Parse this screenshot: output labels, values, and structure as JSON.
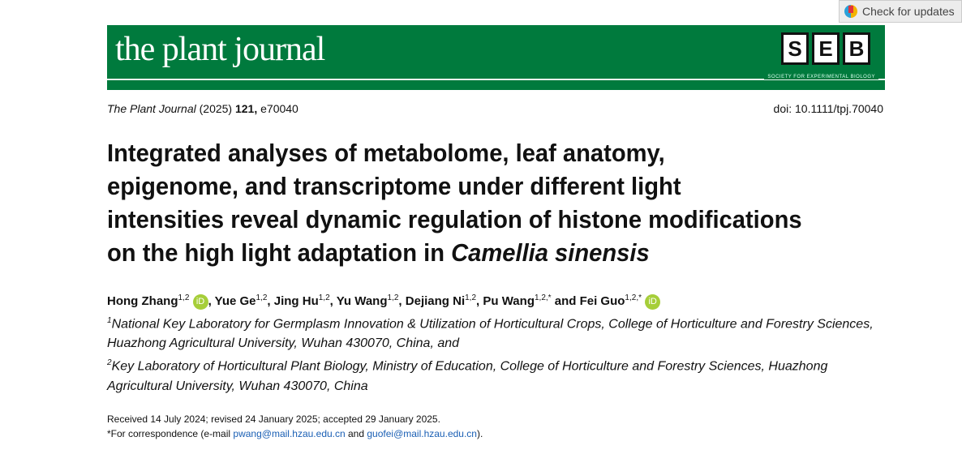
{
  "check_updates": {
    "label": "Check for updates"
  },
  "banner": {
    "journal_logo": "the plant journal",
    "seb_letters": [
      "S",
      "E",
      "B"
    ],
    "seb_subtitle": "SOCIETY FOR EXPERIMENTAL BIOLOGY",
    "color": "#007a3d"
  },
  "citation": {
    "journal": "The Plant Journal",
    "year": "(2025)",
    "volume": "121,",
    "article": "e70040"
  },
  "doi": "doi: 10.1111/tpj.70040",
  "title_lines": [
    "Integrated analyses of metabolome, leaf anatomy,",
    "epigenome, and transcriptome under different light",
    "intensities reveal dynamic regulation of histone modifications",
    "on the high light adaptation in "
  ],
  "title_species": "Camellia sinensis",
  "authors": [
    {
      "name": "Hong Zhang",
      "sup": "1,2",
      "orcid": "iD",
      "sep": ", "
    },
    {
      "name": "Yue Ge",
      "sup": "1,2",
      "sep": ", "
    },
    {
      "name": "Jing Hu",
      "sup": "1,2",
      "sep": ", "
    },
    {
      "name": "Yu Wang",
      "sup": "1,2",
      "sep": ", "
    },
    {
      "name": "Dejiang Ni",
      "sup": "1,2",
      "sep": ", "
    },
    {
      "name": "Pu Wang",
      "sup": "1,2,*",
      "sep": " and "
    },
    {
      "name": "Fei Guo",
      "sup": "1,2,*",
      "orcid": "iD",
      "sep": ""
    }
  ],
  "affiliations": [
    {
      "num": "1",
      "text": "National Key Laboratory for Germplasm Innovation & Utilization of Horticultural Crops, College of Horticulture and Forestry Sciences, Huazhong Agricultural University, Wuhan 430070, China, and"
    },
    {
      "num": "2",
      "text": "Key Laboratory of Horticultural Plant Biology, Ministry of Education, College of Horticulture and Forestry Sciences, Huazhong Agricultural University, Wuhan 430070, China"
    }
  ],
  "dates": "Received 14 July 2024; revised 24 January 2025; accepted 29 January 2025.",
  "correspondence": {
    "prefix": "*For correspondence (e-mail ",
    "email1": "pwang@mail.hzau.edu.cn",
    "mid": " and ",
    "email2": "guofei@mail.hzau.edu.cn",
    "suffix": ")."
  }
}
